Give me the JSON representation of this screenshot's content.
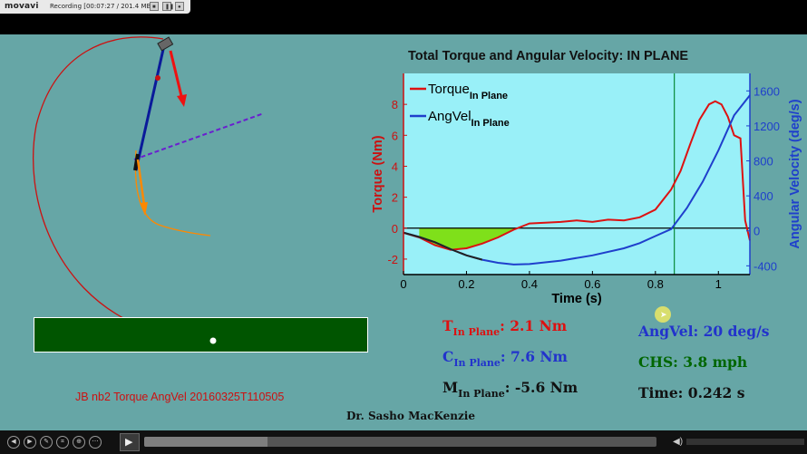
{
  "recorder": {
    "logo": "movavi",
    "status": "Recording [00:07:27 / 201.4 MB]",
    "buttons": [
      "stop",
      "pause",
      "record"
    ]
  },
  "chart": {
    "title": "Total Torque and Angular Velocity: IN PLANE",
    "xlabel": "Time (s)",
    "ylabel_left": "Torque (Nm)",
    "ylabel_right": "Angular Velocity (deg/s)",
    "legend": [
      {
        "base": "Torque",
        "sub": "In Plane",
        "color": "#dd1111"
      },
      {
        "base": "AngVel",
        "sub": "In Plane",
        "color": "#1f3fcc"
      }
    ]
  },
  "chart_data": {
    "type": "line",
    "title": "Total Torque and Angular Velocity: IN PLANE",
    "xlabel": "Time (s)",
    "ylabel": "Torque (Nm)",
    "y2label": "Angular Velocity (deg/s)",
    "xlim": [
      0,
      1.1
    ],
    "ylim": [
      -3,
      10
    ],
    "y2lim": [
      -500,
      1800
    ],
    "xticks": [
      0,
      0.2,
      0.4,
      0.6,
      0.8,
      1
    ],
    "yticks": [
      -2,
      0,
      2,
      4,
      6,
      8
    ],
    "y2ticks": [
      -400,
      0,
      400,
      800,
      1200,
      1600
    ],
    "cursor_x": 0.86,
    "legend_position": "top-left",
    "series": [
      {
        "name": "Torque In Plane",
        "axis": "left",
        "color": "#dd1111",
        "x": [
          0,
          0.05,
          0.1,
          0.15,
          0.2,
          0.25,
          0.3,
          0.35,
          0.4,
          0.45,
          0.5,
          0.55,
          0.6,
          0.65,
          0.7,
          0.75,
          0.8,
          0.85,
          0.88,
          0.91,
          0.94,
          0.97,
          0.99,
          1.01,
          1.03,
          1.05,
          1.07,
          1.085,
          1.1
        ],
        "y": [
          -0.3,
          -0.6,
          -1.1,
          -1.4,
          -1.3,
          -1.0,
          -0.6,
          -0.1,
          0.3,
          0.35,
          0.4,
          0.5,
          0.4,
          0.55,
          0.5,
          0.7,
          1.2,
          2.5,
          3.7,
          5.4,
          7.0,
          8.0,
          8.2,
          8.0,
          7.2,
          6.0,
          5.8,
          0.5,
          -0.8
        ]
      },
      {
        "name": "AngVel In Plane",
        "axis": "right",
        "color": "#1f3fcc",
        "x": [
          0,
          0.05,
          0.1,
          0.15,
          0.2,
          0.25,
          0.3,
          0.35,
          0.4,
          0.5,
          0.6,
          0.7,
          0.75,
          0.8,
          0.85,
          0.9,
          0.95,
          1.0,
          1.05,
          1.1
        ],
        "y": [
          -20,
          -70,
          -130,
          -210,
          -280,
          -330,
          -365,
          -385,
          -380,
          -340,
          -280,
          -200,
          -140,
          -60,
          20,
          260,
          560,
          920,
          1320,
          1550
        ]
      }
    ],
    "shaded_region": {
      "color": "#7fe01a",
      "x": [
        0.05,
        0.35
      ]
    }
  },
  "readouts": {
    "torque": {
      "base": "T",
      "sub": "In Plane",
      "text": ":  2.1 Nm"
    },
    "c": {
      "base": "C",
      "sub": "In Plane",
      "text": ":  7.6 Nm"
    },
    "m": {
      "base": "M",
      "sub": "In Plane",
      "text": ":  -5.6 Nm"
    },
    "angvel": "AngVel: 20 deg/s",
    "chs": "CHS:  3.8 mph",
    "time": "Time:  0.242 s"
  },
  "caption": "JB nb2 Torque AngVel 20160325T110505",
  "author": "Dr. Sasho MacKenzie",
  "player": {
    "controls": [
      "back",
      "forward",
      "draw",
      "crop",
      "zoom",
      "more"
    ],
    "progress": 0.24
  }
}
